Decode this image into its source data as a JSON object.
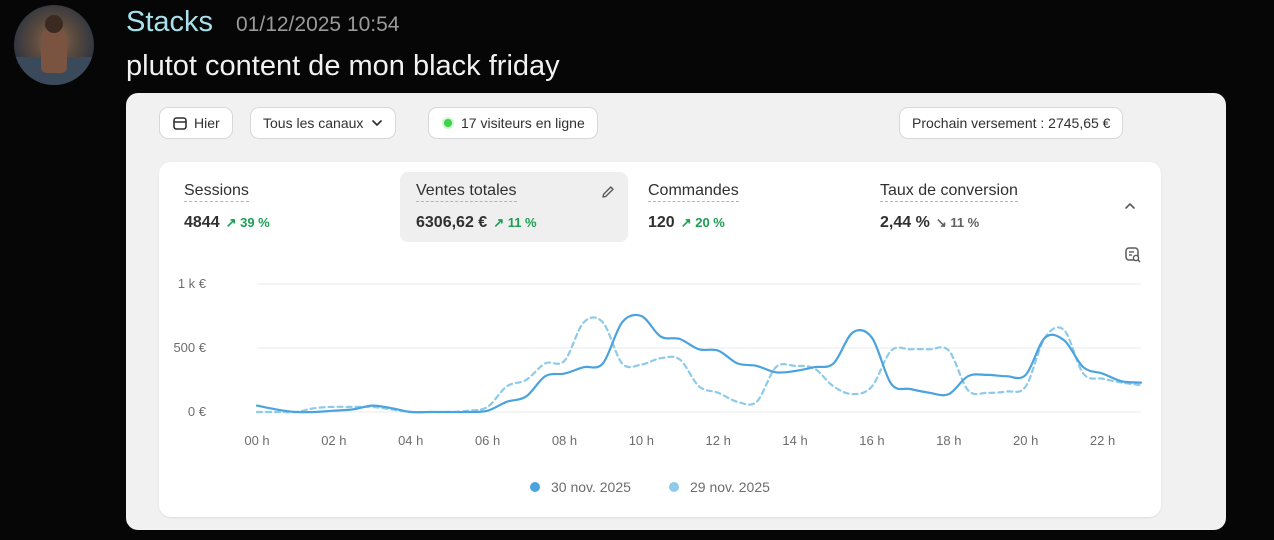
{
  "message": {
    "username": "Stacks",
    "timestamp": "01/12/2025 10:54",
    "text": "plutot content de mon black friday"
  },
  "toolbar": {
    "date_label": "Hier",
    "channel_label": "Tous les canaux",
    "visitors_label": "17 visiteurs en ligne",
    "payout_label": "Prochain versement : 2745,65 €",
    "online_dot_color": "#3fd14a"
  },
  "metrics": [
    {
      "label": "Sessions",
      "value": "4844",
      "delta": "↗ 39 %",
      "direction": "up"
    },
    {
      "label": "Ventes totales",
      "value": "6306,62 €",
      "delta": "↗ 11 %",
      "direction": "up"
    },
    {
      "label": "Commandes",
      "value": "120",
      "delta": "↗ 20 %",
      "direction": "up"
    },
    {
      "label": "Taux de conversion",
      "value": "2,44 %",
      "delta": "↘ 11 %",
      "direction": "down"
    }
  ],
  "chart_data": {
    "type": "line",
    "title": "",
    "ylim": [
      0,
      1000
    ],
    "y_ticks": [
      {
        "value": 0,
        "label": "0 €"
      },
      {
        "value": 500,
        "label": "500 €"
      },
      {
        "value": 1000,
        "label": "1 k €"
      }
    ],
    "x_ticks": [
      "00 h",
      "02 h",
      "04 h",
      "06 h",
      "08 h",
      "10 h",
      "12 h",
      "14 h",
      "16 h",
      "18 h",
      "20 h",
      "22 h"
    ],
    "x": [
      0,
      0.5,
      1,
      1.5,
      2,
      2.5,
      3,
      3.5,
      4,
      4.5,
      5,
      5.5,
      6,
      6.5,
      7,
      7.5,
      8,
      8.5,
      9,
      9.5,
      10,
      10.5,
      11,
      11.5,
      12,
      12.5,
      13,
      13.5,
      14,
      14.5,
      15,
      15.5,
      16,
      16.5,
      17,
      17.5,
      18,
      18.5,
      19,
      19.5,
      20,
      20.5,
      21,
      21.5,
      22,
      22.5,
      23
    ],
    "grid": true,
    "legend": "bottom",
    "series": [
      {
        "name": "30 nov. 2025",
        "color": "#4aa3df",
        "dashed": false,
        "values": [
          50,
          20,
          0,
          0,
          10,
          20,
          50,
          30,
          0,
          0,
          0,
          0,
          10,
          80,
          120,
          280,
          300,
          350,
          380,
          700,
          750,
          590,
          570,
          490,
          480,
          380,
          360,
          310,
          320,
          350,
          380,
          620,
          580,
          220,
          180,
          150,
          140,
          280,
          290,
          280,
          290,
          580,
          560,
          350,
          300,
          240,
          230
        ]
      },
      {
        "name": "29 nov. 2025",
        "color": "#8ecae9",
        "dashed": true,
        "values": [
          0,
          0,
          0,
          30,
          40,
          40,
          40,
          20,
          0,
          0,
          0,
          10,
          40,
          200,
          250,
          380,
          400,
          700,
          700,
          380,
          370,
          420,
          410,
          200,
          150,
          80,
          80,
          350,
          360,
          340,
          200,
          140,
          200,
          480,
          490,
          490,
          480,
          170,
          150,
          160,
          200,
          580,
          640,
          300,
          260,
          230,
          210
        ]
      }
    ]
  }
}
